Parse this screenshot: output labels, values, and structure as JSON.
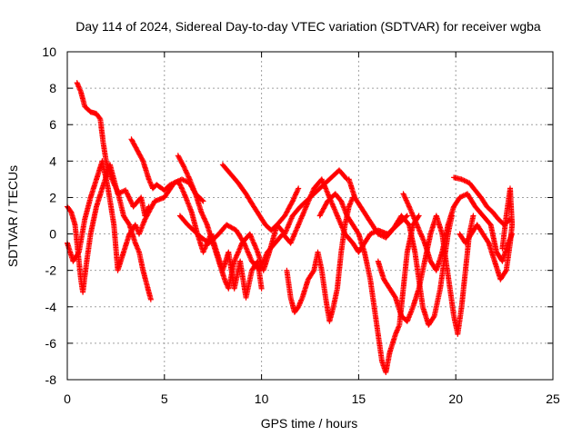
{
  "chart_data": {
    "type": "scatter",
    "title": "Day 114 of 2024, Sidereal Day-to-day VTEC variation (SDTVAR) for receiver wgba",
    "xlabel": "GPS time / hours",
    "ylabel": "SDTVAR / TECUs",
    "xlim": [
      0,
      25
    ],
    "ylim": [
      -8,
      10
    ],
    "xticks": [
      0,
      5,
      10,
      15,
      20,
      25
    ],
    "yticks": [
      -8,
      -6,
      -4,
      -2,
      0,
      2,
      4,
      6,
      8,
      10
    ],
    "x_tick_labels": [
      "0",
      "5",
      "10",
      "15",
      "20",
      "25"
    ],
    "y_tick_labels": [
      "-8",
      "-6",
      "-4",
      "-2",
      "0",
      "2",
      "4",
      "6",
      "8",
      "10"
    ],
    "grid": true,
    "marker": "+",
    "color": "#ff0000",
    "series": [
      {
        "name": "trace-1",
        "points": [
          [
            0.0,
            1.5
          ],
          [
            0.2,
            1.2
          ],
          [
            0.4,
            0.5
          ],
          [
            0.55,
            -1.0
          ],
          [
            0.7,
            -2.5
          ],
          [
            0.8,
            -3.2
          ],
          [
            1.0,
            -1.5
          ],
          [
            1.2,
            0.0
          ],
          [
            1.5,
            1.5
          ],
          [
            1.8,
            2.5
          ],
          [
            2.2,
            3.8
          ],
          [
            2.6,
            2.2
          ],
          [
            3.0,
            2.4
          ],
          [
            3.4,
            1.5
          ],
          [
            3.8,
            2.0
          ],
          [
            4.0,
            1.0
          ],
          [
            4.2,
            1.5
          ]
        ]
      },
      {
        "name": "trace-2",
        "points": [
          [
            0.5,
            8.3
          ],
          [
            0.7,
            7.8
          ],
          [
            0.9,
            7.0
          ],
          [
            1.2,
            6.7
          ],
          [
            1.5,
            6.6
          ],
          [
            1.7,
            6.3
          ],
          [
            1.85,
            5.0
          ],
          [
            2.0,
            4.0
          ],
          [
            2.3,
            3.0
          ],
          [
            2.6,
            2.3
          ],
          [
            2.9,
            1.0
          ],
          [
            3.2,
            0.5
          ],
          [
            3.5,
            -0.5
          ],
          [
            3.7,
            -1.0
          ],
          [
            3.9,
            -2.0
          ],
          [
            4.1,
            -2.8
          ],
          [
            4.3,
            -3.6
          ]
        ]
      },
      {
        "name": "trace-3",
        "points": [
          [
            0.0,
            -0.5
          ],
          [
            0.3,
            -1.5
          ],
          [
            0.6,
            -1.0
          ],
          [
            0.9,
            0.8
          ],
          [
            1.2,
            2.0
          ],
          [
            1.5,
            3.0
          ],
          [
            1.8,
            4.0
          ],
          [
            2.1,
            2.5
          ],
          [
            2.4,
            0.5
          ],
          [
            2.6,
            -2.0
          ],
          [
            2.9,
            -1.0
          ],
          [
            3.2,
            0.0
          ],
          [
            3.5,
            0.5
          ],
          [
            3.7,
            0.0
          ],
          [
            4.0,
            0.8
          ],
          [
            4.5,
            1.8
          ],
          [
            5.0,
            2.0
          ],
          [
            5.5,
            2.8
          ],
          [
            5.9,
            3.0
          ],
          [
            6.3,
            2.8
          ],
          [
            6.6,
            2.2
          ],
          [
            7.0,
            1.8
          ]
        ]
      },
      {
        "name": "trace-4",
        "points": [
          [
            3.3,
            5.2
          ],
          [
            3.6,
            4.6
          ],
          [
            3.9,
            4.0
          ],
          [
            4.2,
            3.0
          ],
          [
            4.4,
            2.5
          ],
          [
            4.6,
            2.7
          ],
          [
            5.0,
            2.4
          ],
          [
            5.3,
            2.7
          ],
          [
            5.7,
            2.9
          ],
          [
            5.9,
            2.5
          ],
          [
            6.1,
            2.0
          ],
          [
            6.4,
            1.2
          ],
          [
            6.7,
            0.0
          ],
          [
            7.0,
            -1.0
          ],
          [
            7.4,
            0.0
          ],
          [
            7.7,
            -1.0
          ],
          [
            8.0,
            -2.0
          ],
          [
            8.3,
            -1.0
          ],
          [
            8.6,
            -3.0
          ],
          [
            8.9,
            -1.5
          ],
          [
            9.2,
            -3.5
          ],
          [
            9.5,
            -2.0
          ],
          [
            9.8,
            -1.5
          ],
          [
            10.0,
            -3.0
          ]
        ]
      },
      {
        "name": "trace-5",
        "points": [
          [
            5.7,
            4.3
          ],
          [
            6.0,
            3.7
          ],
          [
            6.3,
            3.0
          ],
          [
            6.6,
            2.2
          ],
          [
            6.9,
            1.2
          ],
          [
            7.2,
            0.5
          ],
          [
            7.5,
            -0.5
          ],
          [
            7.8,
            -1.5
          ],
          [
            8.1,
            -2.5
          ],
          [
            8.3,
            -3.0
          ],
          [
            8.6,
            -1.5
          ],
          [
            9.0,
            -0.5
          ],
          [
            9.4,
            0.0
          ],
          [
            9.8,
            -1.0
          ],
          [
            10.1,
            -2.0
          ],
          [
            10.4,
            -1.0
          ],
          [
            10.8,
            0.5
          ],
          [
            11.2,
            0.0
          ],
          [
            11.6,
            1.0
          ],
          [
            12.0,
            1.5
          ],
          [
            12.5,
            2.0
          ],
          [
            13.0,
            2.5
          ],
          [
            13.5,
            3.0
          ],
          [
            14.0,
            3.5
          ],
          [
            14.4,
            3.0
          ]
        ]
      },
      {
        "name": "trace-6",
        "points": [
          [
            5.8,
            1.0
          ],
          [
            6.2,
            0.5
          ],
          [
            6.5,
            0.2
          ],
          [
            6.9,
            -0.2
          ],
          [
            7.3,
            -0.5
          ],
          [
            7.8,
            0.0
          ],
          [
            8.2,
            0.5
          ],
          [
            8.7,
            0.2
          ],
          [
            9.1,
            -0.5
          ],
          [
            9.5,
            -1.5
          ],
          [
            9.9,
            -2.0
          ],
          [
            10.3,
            -1.0
          ],
          [
            10.7,
            -0.5
          ],
          [
            11.1,
            0.0
          ],
          [
            11.5,
            -0.5
          ],
          [
            11.9,
            0.5
          ],
          [
            12.3,
            1.5
          ],
          [
            12.7,
            2.5
          ],
          [
            13.1,
            3.0
          ],
          [
            13.5,
            2.0
          ],
          [
            13.9,
            1.0
          ],
          [
            14.3,
            0.0
          ],
          [
            14.7,
            -0.5
          ],
          [
            15.0,
            -1.0
          ],
          [
            15.3,
            -0.5
          ],
          [
            15.6,
            0.0
          ],
          [
            16.0,
            0.2
          ],
          [
            16.5,
            0.0
          ],
          [
            17.0,
            0.5
          ],
          [
            17.5,
            1.0
          ]
        ]
      },
      {
        "name": "trace-7",
        "points": [
          [
            8.0,
            3.8
          ],
          [
            8.4,
            3.3
          ],
          [
            8.8,
            2.8
          ],
          [
            9.2,
            2.2
          ],
          [
            9.6,
            1.5
          ],
          [
            9.9,
            1.0
          ],
          [
            10.2,
            0.5
          ],
          [
            10.5,
            0.2
          ],
          [
            10.8,
            0.5
          ],
          [
            11.2,
            1.0
          ],
          [
            11.6,
            1.8
          ],
          [
            11.9,
            2.5
          ]
        ]
      },
      {
        "name": "trace-8",
        "points": [
          [
            11.3,
            -2.0
          ],
          [
            11.5,
            -3.5
          ],
          [
            11.7,
            -4.3
          ],
          [
            11.9,
            -4.0
          ],
          [
            12.1,
            -3.5
          ],
          [
            12.4,
            -2.5
          ],
          [
            12.7,
            -2.0
          ],
          [
            12.9,
            -1.0
          ],
          [
            13.1,
            -2.0
          ],
          [
            13.3,
            -3.5
          ],
          [
            13.5,
            -4.8
          ],
          [
            13.7,
            -4.0
          ],
          [
            13.9,
            -3.0
          ],
          [
            14.1,
            -1.0
          ],
          [
            14.3,
            0.5
          ],
          [
            14.5,
            1.5
          ],
          [
            14.7,
            2.0
          ]
        ]
      },
      {
        "name": "trace-9",
        "points": [
          [
            13.0,
            1.0
          ],
          [
            13.4,
            1.8
          ],
          [
            13.8,
            2.2
          ],
          [
            14.1,
            1.8
          ],
          [
            14.4,
            1.0
          ],
          [
            14.7,
            0.5
          ],
          [
            15.0,
            0.0
          ],
          [
            15.3,
            -1.0
          ],
          [
            15.6,
            -2.5
          ],
          [
            15.8,
            -4.0
          ],
          [
            16.0,
            -5.5
          ],
          [
            16.2,
            -7.0
          ],
          [
            16.4,
            -7.6
          ],
          [
            16.6,
            -6.5
          ],
          [
            16.9,
            -5.5
          ],
          [
            17.1,
            -5.0
          ],
          [
            17.3,
            -3.0
          ],
          [
            17.5,
            -1.0
          ],
          [
            17.8,
            0.5
          ],
          [
            18.1,
            1.0
          ]
        ]
      },
      {
        "name": "trace-10",
        "points": [
          [
            14.5,
            3.0
          ],
          [
            14.8,
            2.0
          ],
          [
            15.1,
            1.5
          ],
          [
            15.4,
            1.0
          ],
          [
            15.7,
            0.5
          ],
          [
            16.0,
            0.0
          ],
          [
            16.4,
            -0.2
          ],
          [
            16.8,
            0.3
          ],
          [
            17.2,
            1.0
          ],
          [
            17.6,
            0.5
          ],
          [
            17.9,
            -1.0
          ],
          [
            18.1,
            -2.5
          ],
          [
            18.3,
            -4.0
          ],
          [
            18.6,
            -5.0
          ],
          [
            18.9,
            -4.5
          ],
          [
            19.2,
            -3.0
          ],
          [
            19.4,
            -1.5
          ],
          [
            19.6,
            0.0
          ],
          [
            19.8,
            1.0
          ]
        ]
      },
      {
        "name": "trace-11",
        "points": [
          [
            16.0,
            -1.5
          ],
          [
            16.3,
            -2.5
          ],
          [
            16.6,
            -3.0
          ],
          [
            16.9,
            -3.5
          ],
          [
            17.2,
            -4.5
          ],
          [
            17.5,
            -4.8
          ],
          [
            17.8,
            -4.0
          ],
          [
            18.1,
            -3.0
          ],
          [
            18.4,
            -1.5
          ],
          [
            18.7,
            0.0
          ],
          [
            19.0,
            1.0
          ],
          [
            19.3,
            0.0
          ],
          [
            19.5,
            -1.5
          ],
          [
            19.7,
            -3.0
          ],
          [
            19.9,
            -4.5
          ],
          [
            20.1,
            -5.5
          ],
          [
            20.3,
            -4.0
          ],
          [
            20.5,
            -2.0
          ],
          [
            20.7,
            0.0
          ],
          [
            20.9,
            1.0
          ]
        ]
      },
      {
        "name": "trace-12",
        "points": [
          [
            17.3,
            2.2
          ],
          [
            17.6,
            1.5
          ],
          [
            18.0,
            0.5
          ],
          [
            18.4,
            -0.5
          ],
          [
            18.7,
            -1.5
          ],
          [
            19.0,
            -2.0
          ],
          [
            19.3,
            -1.0
          ],
          [
            19.6,
            0.5
          ],
          [
            19.9,
            1.5
          ],
          [
            20.2,
            2.0
          ],
          [
            20.6,
            2.2
          ],
          [
            21.0,
            1.5
          ],
          [
            21.4,
            1.0
          ],
          [
            21.8,
            0.5
          ],
          [
            22.1,
            -1.0
          ],
          [
            22.4,
            -1.5
          ],
          [
            22.7,
            -0.5
          ],
          [
            22.9,
            0.0
          ]
        ]
      },
      {
        "name": "trace-13",
        "points": [
          [
            19.9,
            3.1
          ],
          [
            20.3,
            3.0
          ],
          [
            20.7,
            2.8
          ],
          [
            21.0,
            2.4
          ],
          [
            21.3,
            2.0
          ],
          [
            21.6,
            1.5
          ],
          [
            21.9,
            1.2
          ],
          [
            22.2,
            0.8
          ],
          [
            22.5,
            0.5
          ],
          [
            22.8,
            0.8
          ]
        ]
      },
      {
        "name": "trace-14",
        "points": [
          [
            20.2,
            0.0
          ],
          [
            20.5,
            -0.5
          ],
          [
            20.8,
            0.0
          ],
          [
            21.1,
            0.5
          ],
          [
            21.4,
            0.0
          ],
          [
            21.7,
            -0.5
          ],
          [
            22.0,
            -1.5
          ],
          [
            22.3,
            -2.5
          ],
          [
            22.6,
            -2.0
          ],
          [
            22.8,
            -0.5
          ],
          [
            22.9,
            0.5
          ],
          [
            22.8,
            2.5
          ],
          [
            22.6,
            1.0
          ],
          [
            22.4,
            -0.8
          ]
        ]
      }
    ]
  }
}
